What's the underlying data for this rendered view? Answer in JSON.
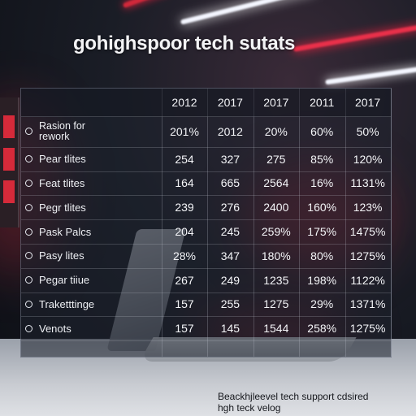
{
  "title": "gohighspoor tech sutats",
  "table": {
    "columns": [
      "2012",
      "2017",
      "2017",
      "2011",
      "2017"
    ],
    "rows": [
      {
        "label": "Rasion for rework",
        "values": [
          "201%",
          "2012",
          "20%",
          "60%",
          "50%"
        ]
      },
      {
        "label": "Pear tlites",
        "values": [
          "254",
          "327",
          "275",
          "85%",
          "120%"
        ]
      },
      {
        "label": "Feat tlites",
        "values": [
          "164",
          "665",
          "2564",
          "16%",
          "1131%"
        ]
      },
      {
        "label": "Pegr tlites",
        "values": [
          "239",
          "276",
          "2400",
          "160%",
          "123%"
        ]
      },
      {
        "label": "Pask Palcs",
        "values": [
          "204",
          "245",
          "259%",
          "175%",
          "1475%"
        ]
      },
      {
        "label": "Pasy lites",
        "values": [
          "28%",
          "347",
          "180%",
          "80%",
          "1275%"
        ]
      },
      {
        "label": "Pegar tiiue",
        "values": [
          "267",
          "249",
          "1235",
          "198%",
          "1122%"
        ]
      },
      {
        "label": "Traketttinge",
        "values": [
          "157",
          "255",
          "1275",
          "29%",
          "1371%"
        ]
      },
      {
        "label": "Venots",
        "values": [
          "157",
          "145",
          "1544",
          "258%",
          "1275%"
        ]
      }
    ]
  },
  "caption": {
    "line1": "Beackhjleevel tech support cdsired",
    "line2": "hgh teck velog"
  },
  "colors": {
    "accent_red": "#d62a3a",
    "text_light": "#f4f5f8",
    "panel": "#1e222e"
  }
}
